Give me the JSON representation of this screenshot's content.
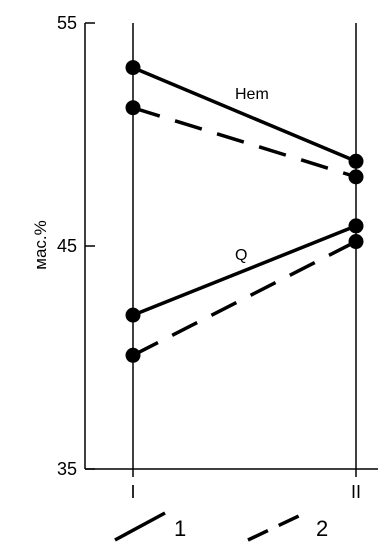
{
  "chart_data": {
    "type": "line",
    "ylabel": "мас.%",
    "ylim": [
      35,
      55
    ],
    "yticks": [
      35,
      45,
      55
    ],
    "categories": [
      "I",
      "II"
    ],
    "series": [
      {
        "name": "1",
        "group": "Hem",
        "style": "solid",
        "values": [
          53.0,
          48.8
        ]
      },
      {
        "name": "2",
        "group": "Hem",
        "style": "dashed",
        "values": [
          51.2,
          48.1
        ]
      },
      {
        "name": "1",
        "group": "Q",
        "style": "solid",
        "values": [
          41.9,
          45.9
        ]
      },
      {
        "name": "2",
        "group": "Q",
        "style": "dashed",
        "values": [
          40.1,
          45.2
        ]
      }
    ],
    "annotations": [
      "Hem",
      "Q"
    ],
    "legend": [
      {
        "label": "1",
        "style": "solid"
      },
      {
        "label": "2",
        "style": "dashed"
      }
    ],
    "colors": {
      "lines": "#000000",
      "background": "#ffffff"
    }
  }
}
